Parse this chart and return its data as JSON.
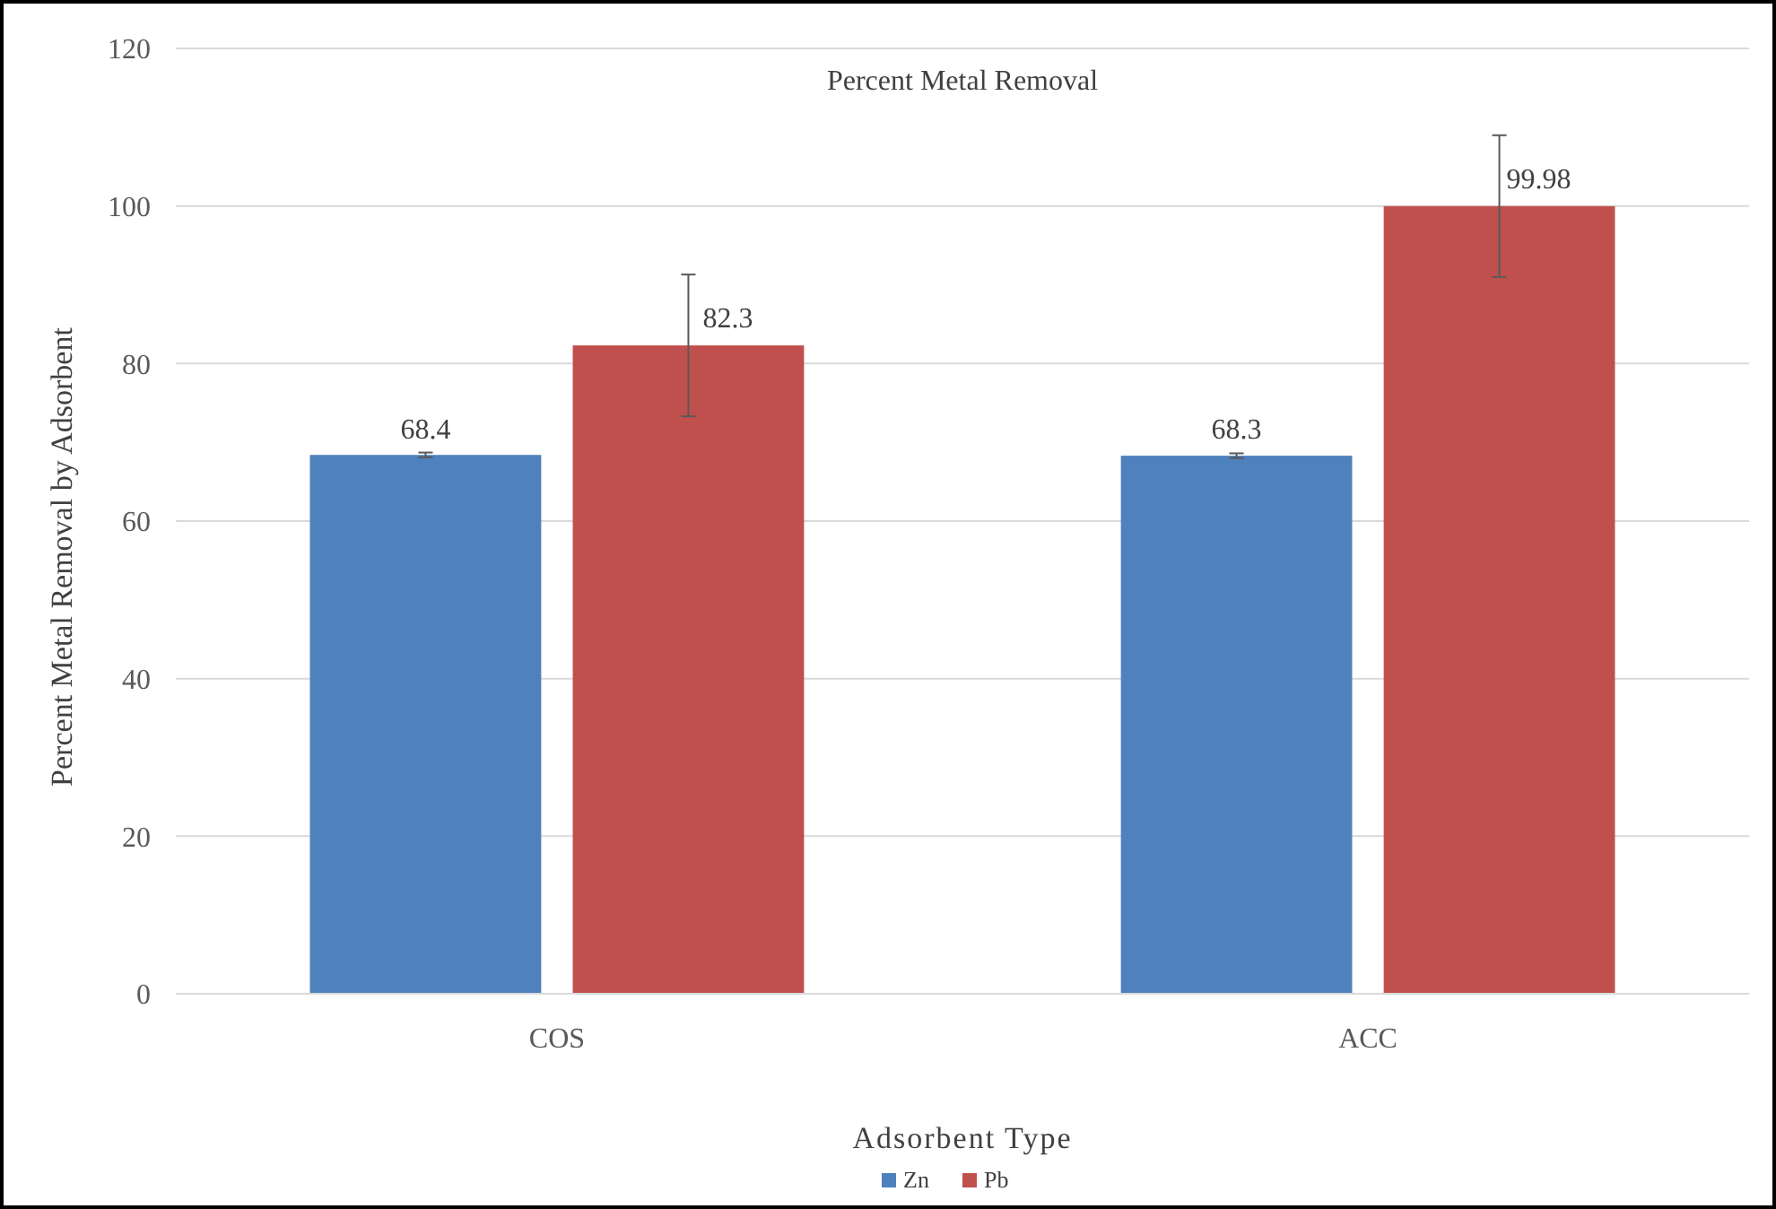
{
  "chart_data": {
    "type": "bar",
    "title": "Percent Metal Removal",
    "xlabel": "Adsorbent Type",
    "ylabel": "Percent Metal Removal by Adsorbent",
    "categories": [
      "COS",
      "ACC"
    ],
    "series": [
      {
        "name": "Zn",
        "color": "#4f81bd",
        "values": [
          68.4,
          68.3
        ],
        "errors": [
          0.3,
          0.3
        ]
      },
      {
        "name": "Pb",
        "color": "#c0504d",
        "values": [
          82.3,
          99.98
        ],
        "errors": [
          9,
          9
        ]
      }
    ],
    "ylim": [
      0,
      120
    ],
    "yticks": [
      0,
      20,
      40,
      60,
      80,
      100,
      120
    ],
    "grid": "y",
    "legend": "bottom",
    "data_labels": true
  }
}
